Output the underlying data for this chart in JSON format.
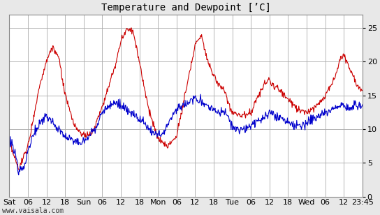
{
  "title": "Temperature and Dewpoint [ʼC]",
  "background_color": "#e8e8e8",
  "plot_bg_color": "#ffffff",
  "grid_color": "#aaaaaa",
  "temp_color": "#cc0000",
  "dew_color": "#0000cc",
  "line_width": 0.8,
  "ylim": [
    0,
    27
  ],
  "yticks": [
    0,
    5,
    10,
    15,
    20,
    25
  ],
  "watermark": "www.vaisala.com",
  "x_tick_labels": [
    "Sat",
    "06",
    "12",
    "18",
    "Sun",
    "06",
    "12",
    "18",
    "Mon",
    "06",
    "12",
    "18",
    "Tue",
    "06",
    "12",
    "18",
    "Wed",
    "06",
    "12",
    "23:45"
  ],
  "x_tick_positions": [
    0,
    6,
    12,
    18,
    24,
    30,
    36,
    42,
    48,
    54,
    60,
    66,
    72,
    78,
    84,
    90,
    96,
    102,
    108,
    114
  ],
  "x_total": 114
}
